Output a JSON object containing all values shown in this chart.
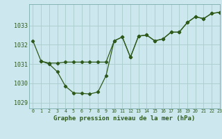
{
  "title": "Graphe pression niveau de la mer (hPa)",
  "bg_color": "#cce8ee",
  "grid_color": "#aacccc",
  "line_color": "#2d5a1b",
  "xlim": [
    -0.5,
    23
  ],
  "ylim": [
    1028.7,
    1034.1
  ],
  "yticks": [
    1029,
    1030,
    1031,
    1032,
    1033
  ],
  "xticks": [
    0,
    1,
    2,
    3,
    4,
    5,
    6,
    7,
    8,
    9,
    10,
    11,
    12,
    13,
    14,
    15,
    16,
    17,
    18,
    19,
    20,
    21,
    22,
    23
  ],
  "series1_x": [
    0,
    1,
    2,
    3,
    4,
    5,
    6,
    7,
    8,
    9,
    10,
    11,
    12,
    13,
    14,
    15,
    16,
    17,
    18,
    19,
    20,
    21,
    22,
    23
  ],
  "series1_y": [
    1032.2,
    1031.15,
    1031.0,
    1030.6,
    1029.85,
    1029.5,
    1029.48,
    1029.45,
    1029.55,
    1030.4,
    1032.2,
    1032.4,
    1031.35,
    1032.45,
    1032.5,
    1032.2,
    1032.3,
    1032.65,
    1032.65,
    1033.15,
    1033.45,
    1033.35,
    1033.62,
    1033.68
  ],
  "series2_x": [
    1,
    2,
    3,
    4,
    5,
    6,
    7,
    8,
    9,
    10,
    11,
    12,
    13,
    14,
    15,
    16,
    17,
    18,
    19,
    20,
    21,
    22,
    23
  ],
  "series2_y": [
    1031.15,
    1031.05,
    1031.05,
    1031.1,
    1031.1,
    1031.1,
    1031.1,
    1031.1,
    1031.1,
    1032.2,
    1032.4,
    1031.35,
    1032.45,
    1032.5,
    1032.2,
    1032.3,
    1032.65,
    1032.65,
    1033.15,
    1033.45,
    1033.35,
    1033.62,
    1033.68
  ]
}
